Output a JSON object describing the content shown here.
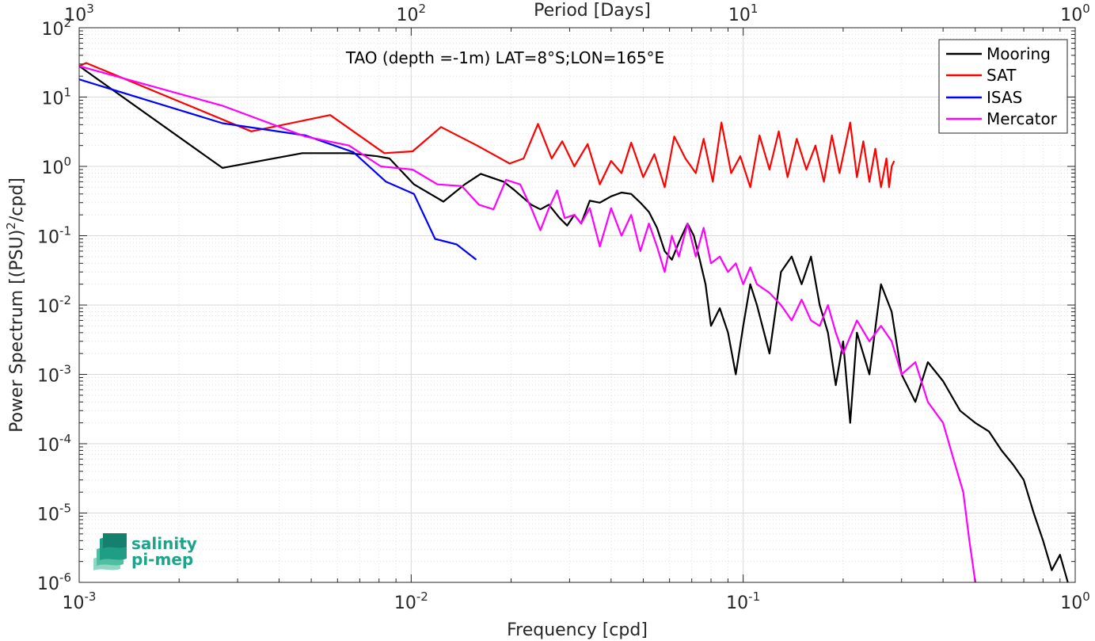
{
  "chart_data": {
    "type": "line",
    "title": "TAO (depth =-1m) LAT=8°S;LON=165°E",
    "xlabel": "Frequency [cpd]",
    "ylabel_parts": [
      "Power Spectrum [(PSU)",
      "2",
      "/cpd]"
    ],
    "top_axis_label": "Period [Days]",
    "xscale": "log",
    "yscale": "log",
    "xlim": [
      0.001,
      1
    ],
    "ylim": [
      1e-06,
      100
    ],
    "grid": true,
    "legend_position": "top-right",
    "x_ticks": [
      {
        "base": "10",
        "exp": "-3"
      },
      {
        "base": "10",
        "exp": "-2"
      },
      {
        "base": "10",
        "exp": "-1"
      },
      {
        "base": "10",
        "exp": "0"
      }
    ],
    "top_ticks": [
      {
        "base": "10",
        "exp": "3"
      },
      {
        "base": "10",
        "exp": "2"
      },
      {
        "base": "10",
        "exp": "1"
      },
      {
        "base": "10",
        "exp": "0"
      }
    ],
    "y_ticks": [
      {
        "base": "10",
        "exp": "-6"
      },
      {
        "base": "10",
        "exp": "-5"
      },
      {
        "base": "10",
        "exp": "-4"
      },
      {
        "base": "10",
        "exp": "-3"
      },
      {
        "base": "10",
        "exp": "-2"
      },
      {
        "base": "10",
        "exp": "-1"
      },
      {
        "base": "10",
        "exp": "0"
      },
      {
        "base": "10",
        "exp": "1"
      },
      {
        "base": "10",
        "exp": "2"
      }
    ],
    "series": [
      {
        "name": "Mooring",
        "color": "#000000",
        "points": [
          [
            0.001,
            28
          ],
          [
            0.0027,
            0.95
          ],
          [
            0.0047,
            1.55
          ],
          [
            0.0065,
            1.55
          ],
          [
            0.0079,
            1.4
          ],
          [
            0.0086,
            1.3
          ],
          [
            0.0102,
            0.55
          ],
          [
            0.0125,
            0.31
          ],
          [
            0.0145,
            0.55
          ],
          [
            0.0162,
            0.78
          ],
          [
            0.019,
            0.6
          ],
          [
            0.0205,
            0.45
          ],
          [
            0.023,
            0.28
          ],
          [
            0.0245,
            0.24
          ],
          [
            0.026,
            0.28
          ],
          [
            0.028,
            0.18
          ],
          [
            0.0295,
            0.14
          ],
          [
            0.031,
            0.2
          ],
          [
            0.0325,
            0.15
          ],
          [
            0.0345,
            0.32
          ],
          [
            0.037,
            0.3
          ],
          [
            0.04,
            0.37
          ],
          [
            0.043,
            0.42
          ],
          [
            0.046,
            0.4
          ],
          [
            0.049,
            0.3
          ],
          [
            0.052,
            0.22
          ],
          [
            0.055,
            0.13
          ],
          [
            0.058,
            0.06
          ],
          [
            0.061,
            0.045
          ],
          [
            0.064,
            0.08
          ],
          [
            0.068,
            0.15
          ],
          [
            0.071,
            0.1
          ],
          [
            0.074,
            0.045
          ],
          [
            0.077,
            0.02
          ],
          [
            0.08,
            0.005
          ],
          [
            0.085,
            0.009
          ],
          [
            0.09,
            0.004
          ],
          [
            0.095,
            0.001
          ],
          [
            0.1,
            0.005
          ],
          [
            0.105,
            0.02
          ],
          [
            0.11,
            0.01
          ],
          [
            0.12,
            0.002
          ],
          [
            0.13,
            0.03
          ],
          [
            0.14,
            0.05
          ],
          [
            0.15,
            0.02
          ],
          [
            0.16,
            0.05
          ],
          [
            0.17,
            0.01
          ],
          [
            0.18,
            0.004
          ],
          [
            0.19,
            0.0007
          ],
          [
            0.2,
            0.003
          ],
          [
            0.21,
            0.0002
          ],
          [
            0.22,
            0.004
          ],
          [
            0.24,
            0.001
          ],
          [
            0.26,
            0.02
          ],
          [
            0.28,
            0.008
          ],
          [
            0.3,
            0.001
          ],
          [
            0.33,
            0.0004
          ],
          [
            0.36,
            0.0015
          ],
          [
            0.4,
            0.0008
          ],
          [
            0.45,
            0.0003
          ],
          [
            0.5,
            0.0002
          ],
          [
            0.55,
            0.00015
          ],
          [
            0.6,
            8e-05
          ],
          [
            0.65,
            5e-05
          ],
          [
            0.7,
            3e-05
          ],
          [
            0.75,
            1e-05
          ],
          [
            0.8,
            4e-06
          ],
          [
            0.85,
            1.5e-06
          ],
          [
            0.9,
            2.5e-06
          ],
          [
            0.95,
            1e-06
          ]
        ]
      },
      {
        "name": "SAT",
        "color": "#FF0000",
        "points": [
          [
            0.001,
            28
          ],
          [
            0.00105,
            31
          ],
          [
            0.0033,
            3.2
          ],
          [
            0.0057,
            5.5
          ],
          [
            0.0083,
            1.55
          ],
          [
            0.0101,
            1.65
          ],
          [
            0.0123,
            3.7
          ],
          [
            0.0158,
            2.0
          ],
          [
            0.0198,
            1.1
          ],
          [
            0.0218,
            1.3
          ],
          [
            0.0241,
            4.1
          ],
          [
            0.0265,
            1.3
          ],
          [
            0.0285,
            2.3
          ],
          [
            0.031,
            1.0
          ],
          [
            0.034,
            2.1
          ],
          [
            0.037,
            0.55
          ],
          [
            0.04,
            1.2
          ],
          [
            0.043,
            0.8
          ],
          [
            0.046,
            2.2
          ],
          [
            0.05,
            0.7
          ],
          [
            0.054,
            1.5
          ],
          [
            0.058,
            0.5
          ],
          [
            0.062,
            2.7
          ],
          [
            0.067,
            1.3
          ],
          [
            0.072,
            0.8
          ],
          [
            0.076,
            2.5
          ],
          [
            0.081,
            0.6
          ],
          [
            0.086,
            4.3
          ],
          [
            0.092,
            0.8
          ],
          [
            0.098,
            1.4
          ],
          [
            0.105,
            0.5
          ],
          [
            0.112,
            2.8
          ],
          [
            0.12,
            0.9
          ],
          [
            0.128,
            3.2
          ],
          [
            0.136,
            0.7
          ],
          [
            0.145,
            2.5
          ],
          [
            0.155,
            0.9
          ],
          [
            0.165,
            2.0
          ],
          [
            0.175,
            0.6
          ],
          [
            0.185,
            2.8
          ],
          [
            0.195,
            0.8
          ],
          [
            0.21,
            4.3
          ],
          [
            0.22,
            0.7
          ],
          [
            0.23,
            2.3
          ],
          [
            0.24,
            0.6
          ],
          [
            0.25,
            1.8
          ],
          [
            0.26,
            0.5
          ],
          [
            0.27,
            1.3
          ],
          [
            0.275,
            0.5
          ],
          [
            0.28,
            1.0
          ],
          [
            0.285,
            1.2
          ]
        ]
      },
      {
        "name": "ISAS",
        "color": "#0000FF",
        "points": [
          [
            0.001,
            18
          ],
          [
            0.0027,
            4.2
          ],
          [
            0.0048,
            2.8
          ],
          [
            0.0067,
            1.6
          ],
          [
            0.0084,
            0.6
          ],
          [
            0.0102,
            0.4
          ],
          [
            0.0118,
            0.09
          ],
          [
            0.0137,
            0.075
          ],
          [
            0.0157,
            0.045
          ]
        ]
      },
      {
        "name": "Mercator",
        "color": "#FF00FF",
        "points": [
          [
            0.001,
            28
          ],
          [
            0.0027,
            7.5
          ],
          [
            0.0048,
            2.7
          ],
          [
            0.0065,
            2.0
          ],
          [
            0.0081,
            1.0
          ],
          [
            0.0101,
            0.9
          ],
          [
            0.012,
            0.55
          ],
          [
            0.0142,
            0.52
          ],
          [
            0.016,
            0.28
          ],
          [
            0.0177,
            0.24
          ],
          [
            0.0193,
            0.64
          ],
          [
            0.0213,
            0.55
          ],
          [
            0.023,
            0.25
          ],
          [
            0.0245,
            0.12
          ],
          [
            0.026,
            0.25
          ],
          [
            0.0275,
            0.45
          ],
          [
            0.029,
            0.18
          ],
          [
            0.031,
            0.2
          ],
          [
            0.0325,
            0.15
          ],
          [
            0.0345,
            0.25
          ],
          [
            0.037,
            0.07
          ],
          [
            0.04,
            0.25
          ],
          [
            0.043,
            0.1
          ],
          [
            0.046,
            0.2
          ],
          [
            0.049,
            0.06
          ],
          [
            0.052,
            0.15
          ],
          [
            0.055,
            0.07
          ],
          [
            0.058,
            0.03
          ],
          [
            0.061,
            0.1
          ],
          [
            0.064,
            0.05
          ],
          [
            0.068,
            0.15
          ],
          [
            0.072,
            0.05
          ],
          [
            0.076,
            0.13
          ],
          [
            0.08,
            0.04
          ],
          [
            0.085,
            0.05
          ],
          [
            0.09,
            0.03
          ],
          [
            0.095,
            0.04
          ],
          [
            0.1,
            0.02
          ],
          [
            0.105,
            0.035
          ],
          [
            0.11,
            0.02
          ],
          [
            0.12,
            0.015
          ],
          [
            0.13,
            0.01
          ],
          [
            0.14,
            0.006
          ],
          [
            0.15,
            0.012
          ],
          [
            0.16,
            0.006
          ],
          [
            0.17,
            0.005
          ],
          [
            0.18,
            0.01
          ],
          [
            0.19,
            0.004
          ],
          [
            0.2,
            0.002
          ],
          [
            0.22,
            0.006
          ],
          [
            0.24,
            0.003
          ],
          [
            0.26,
            0.005
          ],
          [
            0.28,
            0.003
          ],
          [
            0.3,
            0.001
          ],
          [
            0.33,
            0.0015
          ],
          [
            0.36,
            0.0004
          ],
          [
            0.4,
            0.0002
          ],
          [
            0.43,
            6e-05
          ],
          [
            0.46,
            2e-05
          ],
          [
            0.48,
            4e-06
          ],
          [
            0.49,
            2e-06
          ],
          [
            0.5,
            1e-06
          ]
        ]
      }
    ]
  }
}
